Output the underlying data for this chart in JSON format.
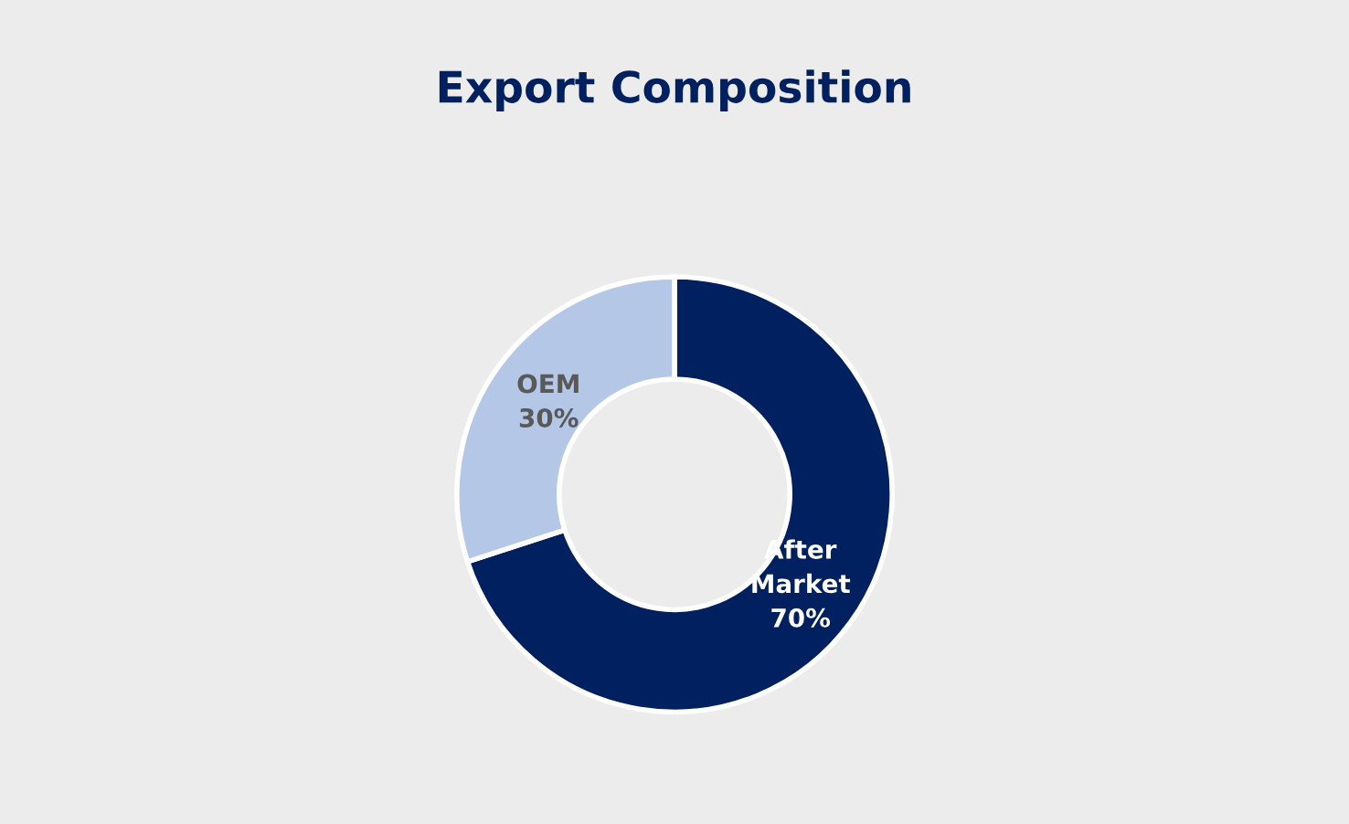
{
  "chart_data": {
    "type": "donut",
    "title": "Export Composition",
    "categories": [
      "After Market",
      "OEM"
    ],
    "values": [
      70,
      30
    ],
    "colors": [
      "#002060",
      "#b4c7e7"
    ],
    "value_labels": [
      "70%",
      "30%"
    ],
    "legend": false
  }
}
